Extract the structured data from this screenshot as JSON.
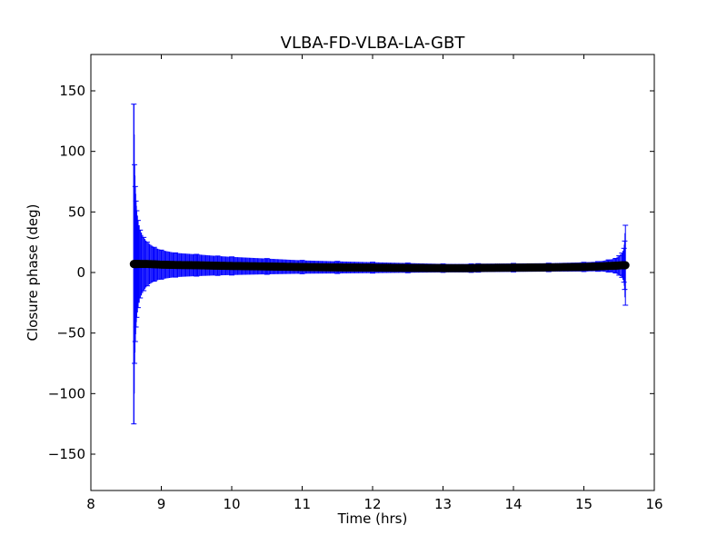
{
  "chart_data": {
    "type": "scatter",
    "title": "VLBA-FD-VLBA-LA-GBT",
    "xlabel": "Time (hrs)",
    "ylabel": "Closure phase (deg)",
    "xlim": [
      8,
      16
    ],
    "ylim": [
      -180,
      180
    ],
    "xticks": [
      8,
      9,
      10,
      11,
      12,
      13,
      14,
      15,
      16
    ],
    "yticks": [
      -150,
      -100,
      -50,
      0,
      50,
      100,
      150
    ],
    "xtick_labels": [
      "8",
      "9",
      "10",
      "11",
      "12",
      "13",
      "14",
      "15",
      "16"
    ],
    "ytick_labels": [
      "−150",
      "−100",
      "−50",
      "0",
      "50",
      "100",
      "150"
    ],
    "grid": false,
    "legend": "none",
    "colors": {
      "points": "#000000",
      "errorbars": "#0000ff"
    },
    "series": [
      {
        "x": [
          8.61,
          8.62,
          8.63,
          8.64,
          8.65,
          8.67,
          8.7,
          8.75,
          8.8,
          8.9,
          9.0,
          9.2,
          9.5,
          9.8,
          10.0,
          10.5,
          11.0,
          11.5,
          12.0,
          12.5,
          13.0,
          13.4,
          13.5,
          14.0,
          14.5,
          15.0,
          15.2,
          15.35,
          15.45,
          15.5,
          15.54,
          15.57,
          15.58,
          15.59
        ],
        "y": [
          7,
          7,
          7,
          7,
          7,
          7,
          7,
          7,
          7,
          6.8,
          6.5,
          6.2,
          6,
          5.6,
          5.4,
          5,
          4.5,
          4.2,
          4,
          3.8,
          3.6,
          3.6,
          3.8,
          4,
          4.2,
          4.6,
          5,
          5.4,
          5.6,
          5.8,
          6,
          6,
          6,
          6
        ],
        "yerr": [
          132,
          82,
          64,
          52,
          44,
          36,
          28,
          22,
          18,
          14,
          12,
          10,
          9,
          8,
          7.5,
          6.5,
          5.5,
          5,
          4.5,
          4,
          3.5,
          3.5,
          3.5,
          3.5,
          3.5,
          3.8,
          4,
          5,
          6,
          8,
          10,
          14,
          20,
          33
        ]
      }
    ]
  }
}
